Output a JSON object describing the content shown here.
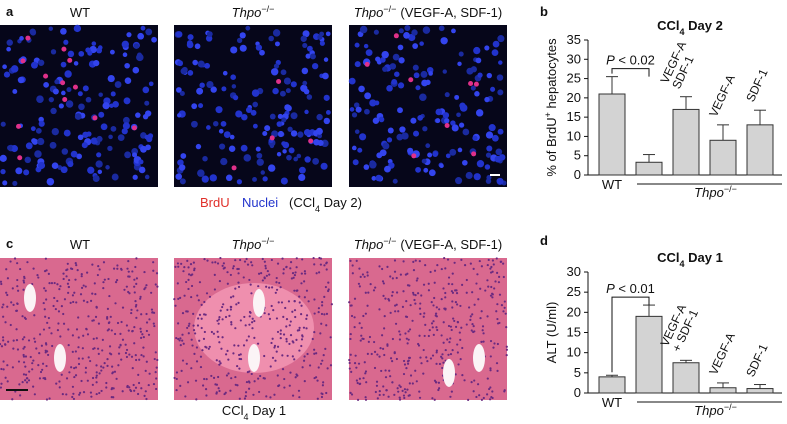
{
  "micrographs": {
    "a": {
      "letter": "a",
      "titles": [
        {
          "text": "WT"
        },
        {
          "text": "Thpo",
          "sup": "−/−"
        },
        {
          "text": "Thpo",
          "sup": "−/−",
          "note": "(VEGF-A, SDF-1)"
        }
      ],
      "legend": {
        "brdu": "BrdU",
        "nuclei": "Nuclei",
        "condition": "(CCl",
        "condition_sub": "4",
        "condition_rest": " Day 2)"
      }
    },
    "c": {
      "letter": "c",
      "titles": [
        {
          "text": "WT"
        },
        {
          "text": "Thpo",
          "sup": "−/−"
        },
        {
          "text": "Thpo",
          "sup": "−/−",
          "note": "(VEGF-A, SDF-1)"
        }
      ],
      "caption": "CCl",
      "caption_sub": "4",
      "caption_rest": " Day 1"
    }
  },
  "chart_data": [
    {
      "letter": "b",
      "type": "bar",
      "title": "CCl",
      "title_sub": "4",
      "title_rest": " Day 2",
      "y_label": "% of BrdU",
      "y_label_sup": "+",
      "y_label_rest": " hepatocytes",
      "categories": [
        "WT",
        null,
        "VEGF-A\nSDF-1",
        "VEGF-A",
        "SDF-1"
      ],
      "group_label": "Thpo",
      "group_label_sup": "−/−",
      "values": [
        21,
        3.3,
        17,
        9,
        13
      ],
      "errors": [
        4.5,
        2,
        3.3,
        4,
        3.8
      ],
      "color": "#d3d3d3",
      "ylim": [
        0,
        35
      ],
      "yticks": [
        0,
        5,
        10,
        15,
        20,
        25,
        30,
        35
      ],
      "annotation": {
        "italic": "P",
        "text": " < 0.02"
      }
    },
    {
      "letter": "d",
      "type": "bar",
      "title": "CCl",
      "title_sub": "4",
      "title_rest": " Day 1",
      "y_label": "ALT (U/ml)",
      "categories": [
        "WT",
        null,
        "VEGF-A\n+ SDF-1",
        "VEGF-A",
        "SDF-1"
      ],
      "group_label": "Thpo",
      "group_label_sup": "−/−",
      "values": [
        4,
        19,
        7.5,
        1.3,
        1.1
      ],
      "errors": [
        0.4,
        2.8,
        0.6,
        1.2,
        1
      ],
      "color": "#d3d3d3",
      "ylim": [
        0,
        30
      ],
      "yticks": [
        0,
        5,
        10,
        15,
        20,
        25,
        30
      ],
      "annotation": {
        "italic": "P",
        "text": " < 0.01"
      }
    }
  ]
}
